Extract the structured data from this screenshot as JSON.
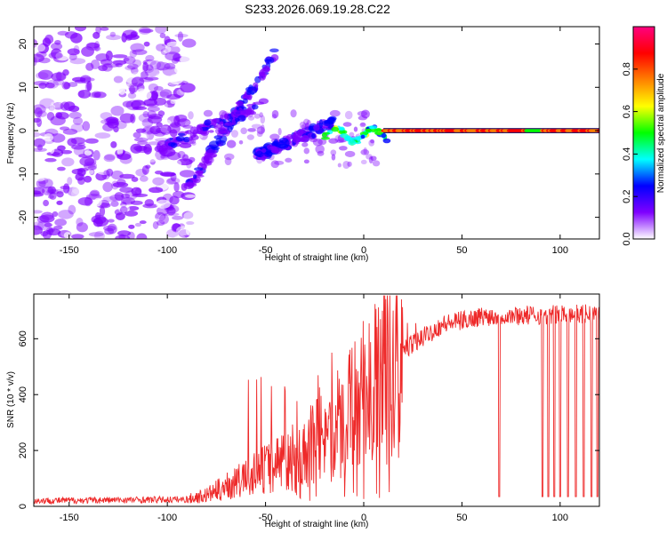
{
  "title": "S233.2026.069.19.28.C22",
  "chart_data": [
    {
      "type": "heatmap",
      "title": "S233.2026.069.19.28.C22",
      "xlabel": "Height of straight line (km)",
      "ylabel": "Frequency (Hz)",
      "xlim": [
        -168,
        120
      ],
      "ylim": [
        -25,
        24
      ],
      "xticks": [
        -150,
        -100,
        -50,
        0,
        50,
        100
      ],
      "yticks": [
        -20,
        -10,
        0,
        10,
        20
      ],
      "colorbar": {
        "label": "Normalized spectral amplitude",
        "range": [
          0,
          1
        ],
        "ticks": [
          "0.0",
          "0.2",
          "0.4",
          "0.6",
          "0.8"
        ],
        "tick_values": [
          0,
          0.2,
          0.4,
          0.6,
          0.8
        ],
        "colors": [
          "#ffffff",
          "#7f00ff",
          "#0000ff",
          "#00ffff",
          "#00ff00",
          "#ffff00",
          "#ff8000",
          "#ff0000",
          "#ff0080"
        ]
      },
      "features": {
        "noise_region_x": [
          -168,
          -88
        ],
        "branch_a": {
          "x": [
            -105,
            -50
          ],
          "y": [
            -4,
            6
          ]
        },
        "branch_b": {
          "x": [
            -90,
            -45
          ],
          "y": [
            -14,
            18
          ]
        },
        "branch_c": {
          "x": [
            -55,
            -15
          ],
          "y": [
            -6,
            2
          ]
        },
        "stable_tone": {
          "x": [
            10,
            120
          ],
          "y": 0,
          "amplitude": 0.85
        }
      }
    },
    {
      "type": "line",
      "xlabel": "Height of straight line (km)",
      "ylabel": "SNR (10 * v/v)",
      "xlim": [
        -168,
        120
      ],
      "ylim": [
        0,
        760
      ],
      "xticks": [
        -150,
        -100,
        -50,
        0,
        50,
        100
      ],
      "yticks": [
        0,
        200,
        400,
        600
      ],
      "series": [
        {
          "name": "SNR",
          "color": "#ee2a2a"
        }
      ],
      "profile": {
        "x": [
          -168,
          -90,
          -80,
          -60,
          -40,
          -20,
          0,
          20,
          40,
          60,
          120
        ],
        "y": [
          20,
          25,
          40,
          100,
          170,
          240,
          380,
          560,
          650,
          680,
          690
        ]
      },
      "dropouts_x": [
        69,
        91,
        94,
        97,
        100,
        104,
        108,
        112,
        116,
        119
      ]
    }
  ]
}
